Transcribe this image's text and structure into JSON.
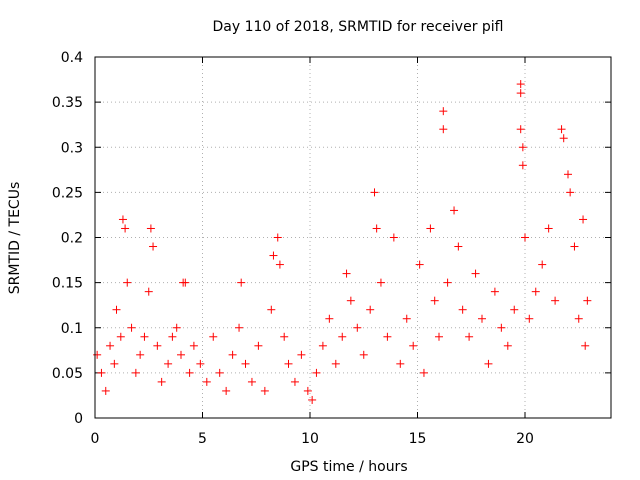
{
  "chart_data": {
    "type": "scatter",
    "title": "Day 110 of 2018, SRMTID for receiver pifl",
    "xlabel": "GPS time / hours",
    "ylabel": "SRMTID / TECUs",
    "xlim": [
      0,
      24
    ],
    "ylim": [
      0,
      0.4
    ],
    "xticks": [
      0,
      5,
      10,
      15,
      20
    ],
    "yticks": [
      0,
      0.05,
      0.1,
      0.15,
      0.2,
      0.25,
      0.3,
      0.35,
      0.4
    ],
    "xtick_labels": [
      "0",
      "5",
      "10",
      "15",
      "20"
    ],
    "ytick_labels": [
      "0",
      "0.05",
      "0.1",
      "0.15",
      "0.2",
      "0.25",
      "0.3",
      "0.35",
      "0.4"
    ],
    "grid": true,
    "marker": "+",
    "marker_color": "#ff0000",
    "series": [
      {
        "name": "SRMTID",
        "points": [
          [
            0.1,
            0.07
          ],
          [
            0.3,
            0.05
          ],
          [
            0.5,
            0.03
          ],
          [
            0.7,
            0.08
          ],
          [
            0.9,
            0.06
          ],
          [
            1.0,
            0.12
          ],
          [
            1.2,
            0.09
          ],
          [
            1.3,
            0.22
          ],
          [
            1.4,
            0.21
          ],
          [
            1.5,
            0.15
          ],
          [
            1.7,
            0.1
          ],
          [
            1.9,
            0.05
          ],
          [
            2.1,
            0.07
          ],
          [
            2.3,
            0.09
          ],
          [
            2.5,
            0.14
          ],
          [
            2.6,
            0.21
          ],
          [
            2.7,
            0.19
          ],
          [
            2.9,
            0.08
          ],
          [
            3.1,
            0.04
          ],
          [
            3.4,
            0.06
          ],
          [
            3.6,
            0.09
          ],
          [
            3.8,
            0.1
          ],
          [
            4.0,
            0.07
          ],
          [
            4.1,
            0.15
          ],
          [
            4.2,
            0.15
          ],
          [
            4.4,
            0.05
          ],
          [
            4.6,
            0.08
          ],
          [
            4.9,
            0.06
          ],
          [
            5.2,
            0.04
          ],
          [
            5.5,
            0.09
          ],
          [
            5.8,
            0.05
          ],
          [
            6.1,
            0.03
          ],
          [
            6.4,
            0.07
          ],
          [
            6.7,
            0.1
          ],
          [
            6.8,
            0.15
          ],
          [
            7.0,
            0.06
          ],
          [
            7.3,
            0.04
          ],
          [
            7.6,
            0.08
          ],
          [
            7.9,
            0.03
          ],
          [
            8.2,
            0.12
          ],
          [
            8.3,
            0.18
          ],
          [
            8.5,
            0.2
          ],
          [
            8.6,
            0.17
          ],
          [
            8.8,
            0.09
          ],
          [
            9.0,
            0.06
          ],
          [
            9.3,
            0.04
          ],
          [
            9.6,
            0.07
          ],
          [
            9.9,
            0.03
          ],
          [
            10.1,
            0.02
          ],
          [
            10.3,
            0.05
          ],
          [
            10.6,
            0.08
          ],
          [
            10.9,
            0.11
          ],
          [
            11.2,
            0.06
          ],
          [
            11.5,
            0.09
          ],
          [
            11.7,
            0.16
          ],
          [
            11.9,
            0.13
          ],
          [
            12.2,
            0.1
          ],
          [
            12.5,
            0.07
          ],
          [
            12.8,
            0.12
          ],
          [
            13.0,
            0.25
          ],
          [
            13.1,
            0.21
          ],
          [
            13.3,
            0.15
          ],
          [
            13.6,
            0.09
          ],
          [
            13.9,
            0.2
          ],
          [
            14.2,
            0.06
          ],
          [
            14.5,
            0.11
          ],
          [
            14.8,
            0.08
          ],
          [
            15.1,
            0.17
          ],
          [
            15.3,
            0.05
          ],
          [
            15.6,
            0.21
          ],
          [
            15.8,
            0.13
          ],
          [
            16.0,
            0.09
          ],
          [
            16.2,
            0.34
          ],
          [
            16.2,
            0.32
          ],
          [
            16.4,
            0.15
          ],
          [
            16.7,
            0.23
          ],
          [
            16.9,
            0.19
          ],
          [
            17.1,
            0.12
          ],
          [
            17.4,
            0.09
          ],
          [
            17.7,
            0.16
          ],
          [
            18.0,
            0.11
          ],
          [
            18.3,
            0.06
          ],
          [
            18.6,
            0.14
          ],
          [
            18.9,
            0.1
          ],
          [
            19.2,
            0.08
          ],
          [
            19.5,
            0.12
          ],
          [
            19.8,
            0.37
          ],
          [
            19.8,
            0.36
          ],
          [
            19.8,
            0.32
          ],
          [
            19.9,
            0.3
          ],
          [
            19.9,
            0.28
          ],
          [
            20.0,
            0.2
          ],
          [
            20.2,
            0.11
          ],
          [
            20.5,
            0.14
          ],
          [
            20.8,
            0.17
          ],
          [
            21.1,
            0.21
          ],
          [
            21.4,
            0.13
          ],
          [
            21.7,
            0.32
          ],
          [
            21.8,
            0.31
          ],
          [
            22.0,
            0.27
          ],
          [
            22.1,
            0.25
          ],
          [
            22.3,
            0.19
          ],
          [
            22.5,
            0.11
          ],
          [
            22.7,
            0.22
          ],
          [
            22.8,
            0.08
          ],
          [
            22.9,
            0.13
          ]
        ]
      }
    ]
  }
}
